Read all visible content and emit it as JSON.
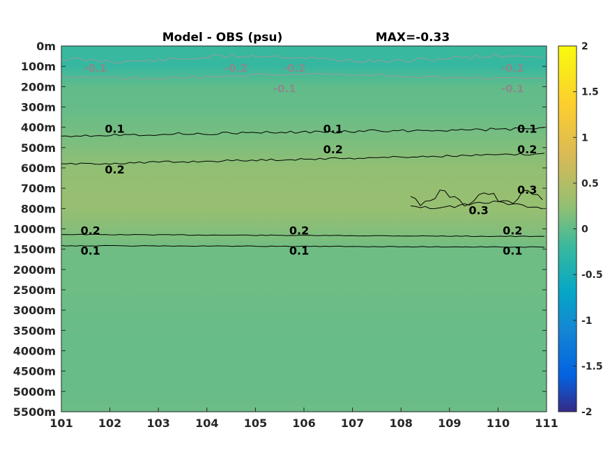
{
  "title_left": "Model - OBS (psu)",
  "title_right": "MAX=-0.33",
  "chart_data": {
    "type": "heatmap",
    "x_ticks": [
      "101",
      "102",
      "103",
      "104",
      "105",
      "106",
      "107",
      "108",
      "109",
      "110",
      "111"
    ],
    "xlim": [
      101,
      111
    ],
    "y_ticks": [
      "0m",
      "100m",
      "200m",
      "300m",
      "400m",
      "500m",
      "600m",
      "700m",
      "800m",
      "1000m",
      "1500m",
      "2000m",
      "2500m",
      "3000m",
      "3500m",
      "4000m",
      "4500m",
      "5000m",
      "5500m"
    ],
    "colorbar": {
      "range": [
        -2,
        2
      ],
      "ticks": [
        "2",
        "1.5",
        "1",
        "0.5",
        "0",
        "-0.5",
        "-1",
        "-1.5",
        "-2"
      ],
      "colormap": "parula"
    },
    "depth_profile": [
      {
        "depth": "0m",
        "value": -0.2
      },
      {
        "depth": "100m",
        "value": -0.22
      },
      {
        "depth": "200m",
        "value": 0.0
      },
      {
        "depth": "300m",
        "value": 0.02
      },
      {
        "depth": "400m",
        "value": 0.08
      },
      {
        "depth": "500m",
        "value": 0.15
      },
      {
        "depth": "600m",
        "value": 0.24
      },
      {
        "depth": "700m",
        "value": 0.27
      },
      {
        "depth": "800m",
        "value": 0.28
      },
      {
        "depth": "1000m",
        "value": 0.18
      },
      {
        "depth": "1500m",
        "value": 0.07
      },
      {
        "depth": "2000m",
        "value": 0.06
      },
      {
        "depth": "2500m",
        "value": 0.06
      },
      {
        "depth": "3000m",
        "value": 0.05
      },
      {
        "depth": "3500m",
        "value": 0.04
      },
      {
        "depth": "4000m",
        "value": 0.03
      },
      {
        "depth": "4500m",
        "value": 0.03
      },
      {
        "depth": "5000m",
        "value": 0.03
      },
      {
        "depth": "5500m",
        "value": 0.06
      }
    ],
    "contour_labels": [
      {
        "text": "-0.1",
        "x": 101.7,
        "depth": "100m",
        "color": "gray"
      },
      {
        "text": "-0.2",
        "x": 104.6,
        "depth": "100m",
        "color": "gray"
      },
      {
        "text": "-0.2",
        "x": 105.8,
        "depth": "100m",
        "color": "gray"
      },
      {
        "text": "-0.1",
        "x": 105.6,
        "depth": "200m",
        "color": "gray"
      },
      {
        "text": "-0.2",
        "x": 110.3,
        "depth": "100m",
        "color": "gray"
      },
      {
        "text": "-0.1",
        "x": 110.3,
        "depth": "200m",
        "color": "gray"
      },
      {
        "text": "0.1",
        "x": 102.1,
        "depth": "400m",
        "color": "black"
      },
      {
        "text": "0.1",
        "x": 106.6,
        "depth": "400m",
        "color": "black"
      },
      {
        "text": "0.1",
        "x": 110.6,
        "depth": "400m",
        "color": "black"
      },
      {
        "text": "0.2",
        "x": 102.1,
        "depth": "600m",
        "color": "black"
      },
      {
        "text": "0.2",
        "x": 106.6,
        "depth": "500m",
        "color": "black"
      },
      {
        "text": "0.2",
        "x": 110.6,
        "depth": "500m",
        "color": "black"
      },
      {
        "text": "0.3",
        "x": 110.6,
        "depth": "700m",
        "color": "black"
      },
      {
        "text": "0.3",
        "x": 109.6,
        "depth": "800m",
        "color": "black"
      },
      {
        "text": "0.2",
        "x": 101.6,
        "depth": "1000m",
        "color": "black"
      },
      {
        "text": "0.2",
        "x": 105.9,
        "depth": "1000m",
        "color": "black"
      },
      {
        "text": "0.2",
        "x": 110.3,
        "depth": "1000m",
        "color": "black"
      },
      {
        "text": "0.1",
        "x": 101.6,
        "depth": "1500m",
        "color": "black"
      },
      {
        "text": "0.1",
        "x": 105.9,
        "depth": "1500m",
        "color": "black"
      },
      {
        "text": "0.1",
        "x": 110.3,
        "depth": "1500m",
        "color": "black"
      }
    ]
  }
}
